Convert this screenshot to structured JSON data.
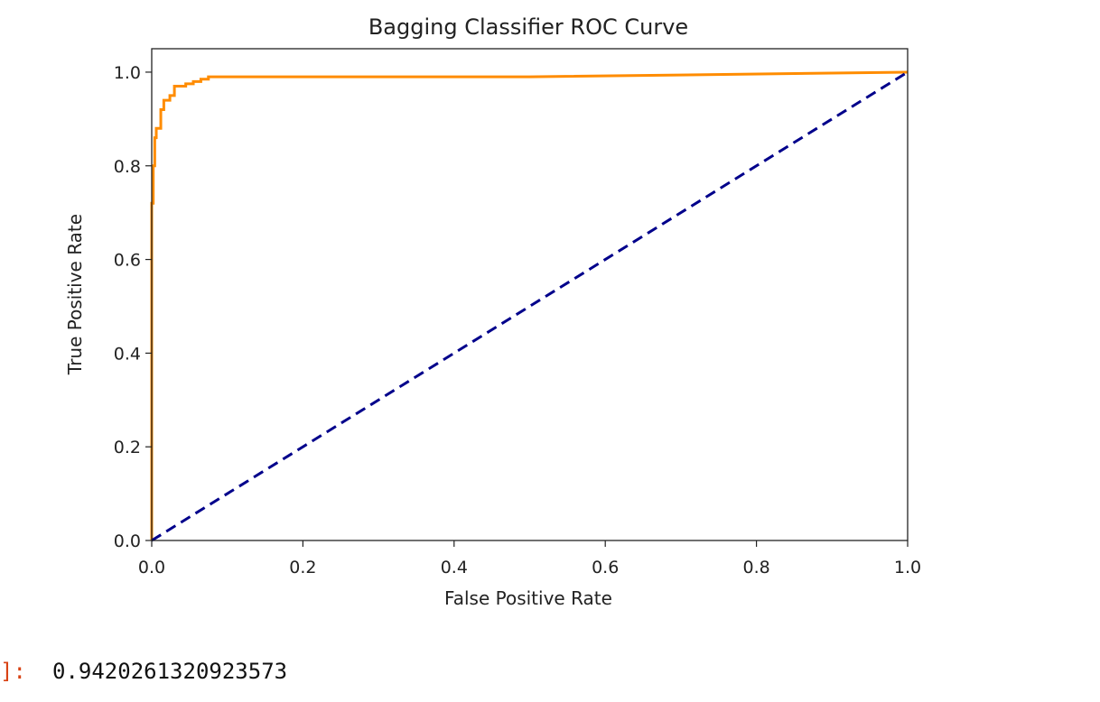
{
  "chart_data": {
    "type": "line",
    "title": "Bagging Classifier ROC Curve",
    "xlabel": "False Positive Rate",
    "ylabel": "True Positive Rate",
    "xlim": [
      0.0,
      1.0
    ],
    "ylim": [
      0.0,
      1.05
    ],
    "xticks": [
      "0.0",
      "0.2",
      "0.4",
      "0.6",
      "0.8",
      "1.0"
    ],
    "yticks": [
      "0.0",
      "0.2",
      "0.4",
      "0.6",
      "0.8",
      "1.0"
    ],
    "grid": false,
    "series": [
      {
        "color": "#ff8c00",
        "style": "solid",
        "x": [
          0.0,
          0.0,
          0.002,
          0.002,
          0.004,
          0.004,
          0.006,
          0.006,
          0.012,
          0.012,
          0.016,
          0.016,
          0.024,
          0.024,
          0.03,
          0.03,
          0.045,
          0.045,
          0.055,
          0.055,
          0.065,
          0.065,
          0.075,
          0.075,
          0.2,
          0.5,
          1.0
        ],
        "y": [
          0.0,
          0.72,
          0.72,
          0.8,
          0.8,
          0.86,
          0.86,
          0.88,
          0.88,
          0.92,
          0.92,
          0.94,
          0.94,
          0.95,
          0.95,
          0.97,
          0.97,
          0.975,
          0.975,
          0.98,
          0.98,
          0.985,
          0.985,
          0.99,
          0.99,
          0.99,
          1.0
        ]
      },
      {
        "color": "#00008b",
        "style": "dashed",
        "x": [
          0.0,
          1.0
        ],
        "y": [
          0.0,
          1.0
        ]
      }
    ]
  },
  "output": {
    "prompt": "]:",
    "value": "0.9420261320923573"
  }
}
